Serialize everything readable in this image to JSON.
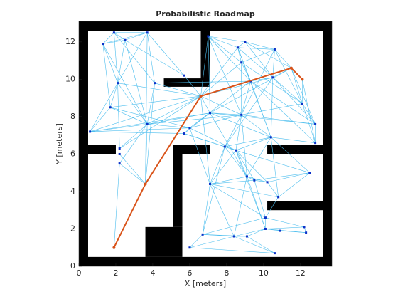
{
  "chart_data": {
    "type": "roadmap",
    "title": "Probabilistic Roadmap",
    "xlabel": "X [meters]",
    "ylabel": "Y [meters]",
    "xlim": [
      0,
      13.7
    ],
    "ylim": [
      0,
      13.1
    ],
    "xticks": [
      0,
      2,
      4,
      6,
      8,
      10,
      12
    ],
    "yticks": [
      0,
      2,
      4,
      6,
      8,
      10,
      12
    ],
    "obstacle_color": "#000000",
    "obstacles": [
      [
        0,
        0,
        0.5,
        13.1
      ],
      [
        0,
        12.6,
        13.7,
        0.5
      ],
      [
        13.2,
        0,
        0.5,
        13.1
      ],
      [
        0,
        0,
        13.7,
        0.5
      ],
      [
        0.5,
        6.0,
        1.5,
        0.5
      ],
      [
        5.1,
        6.0,
        2.0,
        0.5
      ],
      [
        5.1,
        2.1,
        0.5,
        3.9
      ],
      [
        3.6,
        0.5,
        2.0,
        1.6
      ],
      [
        10.2,
        6.0,
        3.0,
        0.5
      ],
      [
        10.2,
        3.0,
        3.0,
        0.5
      ],
      [
        6.6,
        10.0,
        0.5,
        2.6
      ],
      [
        4.6,
        9.6,
        2.5,
        0.45
      ]
    ],
    "edge_color": "#4dbeee",
    "node_color": "#0b30c8",
    "nodes": {
      "x": [
        1.3,
        1.9,
        2.5,
        3.7,
        2.1,
        1.7,
        0.6,
        2.2,
        2.2,
        2.2,
        3.6,
        3.7,
        5.7,
        4.1,
        6.6,
        7.0,
        8.6,
        9.0,
        8.8,
        10.6,
        11.5,
        12.1,
        9.3,
        10.5,
        12.1,
        12.8,
        12.8,
        8.8,
        10.4,
        7.1,
        6.0,
        5.7,
        7.9,
        8.5,
        12.5,
        7.1,
        9.1,
        9.5,
        10.2,
        10.8,
        10.1,
        10.1,
        10.9,
        12.2,
        12.3,
        6.7,
        8.4,
        9.1,
        6.0,
        10.6,
        1.9
      ],
      "y": [
        11.9,
        12.5,
        12.1,
        12.5,
        9.8,
        8.5,
        7.2,
        6.3,
        6.0,
        5.5,
        4.4,
        7.6,
        10.2,
        9.8,
        9.1,
        12.3,
        11.7,
        12.0,
        10.9,
        11.6,
        10.6,
        10.0,
        9.9,
        10.1,
        8.7,
        7.6,
        6.6,
        8.1,
        6.9,
        8.2,
        7.4,
        7.1,
        6.4,
        6.2,
        5.0,
        4.4,
        4.8,
        4.6,
        4.5,
        3.7,
        2.6,
        2.0,
        1.9,
        2.1,
        1.8,
        1.7,
        1.6,
        1.6,
        1.0,
        0.7,
        1.0
      ]
    },
    "edges": [
      [
        0,
        1
      ],
      [
        0,
        2
      ],
      [
        0,
        3
      ],
      [
        0,
        4
      ],
      [
        0,
        5
      ],
      [
        0,
        11
      ],
      [
        1,
        2
      ],
      [
        1,
        3
      ],
      [
        1,
        4
      ],
      [
        1,
        13
      ],
      [
        2,
        3
      ],
      [
        2,
        4
      ],
      [
        2,
        12
      ],
      [
        2,
        11
      ],
      [
        3,
        12
      ],
      [
        3,
        13
      ],
      [
        3,
        4
      ],
      [
        3,
        10
      ],
      [
        4,
        5
      ],
      [
        4,
        6
      ],
      [
        4,
        11
      ],
      [
        4,
        7
      ],
      [
        4,
        14
      ],
      [
        5,
        6
      ],
      [
        5,
        11
      ],
      [
        5,
        14
      ],
      [
        5,
        30
      ],
      [
        6,
        11
      ],
      [
        6,
        30
      ],
      [
        6,
        31
      ],
      [
        6,
        29
      ],
      [
        6,
        14
      ],
      [
        7,
        11
      ],
      [
        7,
        14
      ],
      [
        8,
        10
      ],
      [
        9,
        10
      ],
      [
        9,
        11
      ],
      [
        10,
        11
      ],
      [
        10,
        13
      ],
      [
        11,
        13
      ],
      [
        11,
        14
      ],
      [
        11,
        30
      ],
      [
        11,
        29
      ],
      [
        11,
        27
      ],
      [
        13,
        14
      ],
      [
        13,
        22
      ],
      [
        12,
        14
      ],
      [
        14,
        15
      ],
      [
        14,
        16
      ],
      [
        14,
        18
      ],
      [
        14,
        22
      ],
      [
        14,
        23
      ],
      [
        14,
        27
      ],
      [
        14,
        29
      ],
      [
        14,
        20
      ],
      [
        15,
        16
      ],
      [
        15,
        17
      ],
      [
        15,
        18
      ],
      [
        15,
        22
      ],
      [
        15,
        29
      ],
      [
        15,
        27
      ],
      [
        16,
        17
      ],
      [
        16,
        18
      ],
      [
        16,
        19
      ],
      [
        16,
        22
      ],
      [
        16,
        23
      ],
      [
        16,
        28
      ],
      [
        17,
        19
      ],
      [
        17,
        20
      ],
      [
        17,
        23
      ],
      [
        18,
        19
      ],
      [
        18,
        22
      ],
      [
        18,
        27
      ],
      [
        18,
        24
      ],
      [
        19,
        20
      ],
      [
        19,
        23
      ],
      [
        19,
        24
      ],
      [
        19,
        27
      ],
      [
        20,
        21
      ],
      [
        20,
        23
      ],
      [
        20,
        24
      ],
      [
        20,
        25
      ],
      [
        20,
        29
      ],
      [
        21,
        24
      ],
      [
        21,
        26
      ],
      [
        22,
        23
      ],
      [
        22,
        27
      ],
      [
        22,
        28
      ],
      [
        22,
        30
      ],
      [
        22,
        25
      ],
      [
        23,
        24
      ],
      [
        23,
        25
      ],
      [
        23,
        28
      ],
      [
        23,
        32
      ],
      [
        24,
        25
      ],
      [
        24,
        26
      ],
      [
        24,
        27
      ],
      [
        25,
        26
      ],
      [
        25,
        27
      ],
      [
        25,
        29
      ],
      [
        26,
        28
      ],
      [
        26,
        22
      ],
      [
        27,
        28
      ],
      [
        27,
        29
      ],
      [
        27,
        30
      ],
      [
        27,
        32
      ],
      [
        27,
        33
      ],
      [
        28,
        29
      ],
      [
        28,
        33
      ],
      [
        29,
        30
      ],
      [
        29,
        31
      ],
      [
        30,
        31
      ],
      [
        31,
        33
      ],
      [
        32,
        33
      ],
      [
        32,
        35
      ],
      [
        32,
        36
      ],
      [
        33,
        36
      ],
      [
        33,
        37
      ],
      [
        33,
        34
      ],
      [
        33,
        38
      ],
      [
        28,
        34
      ],
      [
        28,
        36
      ],
      [
        28,
        39
      ],
      [
        32,
        45
      ],
      [
        33,
        41
      ],
      [
        35,
        36
      ],
      [
        35,
        37
      ],
      [
        35,
        46
      ],
      [
        35,
        45
      ],
      [
        35,
        40
      ],
      [
        36,
        37
      ],
      [
        36,
        38
      ],
      [
        36,
        47
      ],
      [
        36,
        46
      ],
      [
        37,
        38
      ],
      [
        37,
        40
      ],
      [
        38,
        39
      ],
      [
        38,
        34
      ],
      [
        39,
        34
      ],
      [
        39,
        40
      ],
      [
        40,
        41
      ],
      [
        40,
        43
      ],
      [
        40,
        45
      ],
      [
        41,
        42
      ],
      [
        41,
        43
      ],
      [
        41,
        44
      ],
      [
        41,
        46
      ],
      [
        42,
        44
      ],
      [
        43,
        44
      ],
      [
        45,
        46
      ],
      [
        45,
        47
      ],
      [
        45,
        48
      ],
      [
        46,
        47
      ],
      [
        46,
        49
      ],
      [
        47,
        41
      ],
      [
        48,
        46
      ],
      [
        48,
        49
      ],
      [
        47,
        49
      ],
      [
        34,
        37
      ],
      [
        32,
        28
      ],
      [
        33,
        35
      ],
      [
        35,
        39
      ],
      [
        36,
        41
      ],
      [
        30,
        35
      ],
      [
        29,
        36
      ],
      [
        30,
        33
      ],
      [
        14,
        35
      ],
      [
        27,
        36
      ],
      [
        31,
        32
      ],
      [
        50,
        10
      ],
      [
        50,
        9
      ]
    ],
    "path": {
      "color": "#d95319",
      "x": [
        1.9,
        3.6,
        6.6,
        11.5,
        12.1
      ],
      "y": [
        1.0,
        4.4,
        9.1,
        10.6,
        10.0
      ]
    }
  }
}
